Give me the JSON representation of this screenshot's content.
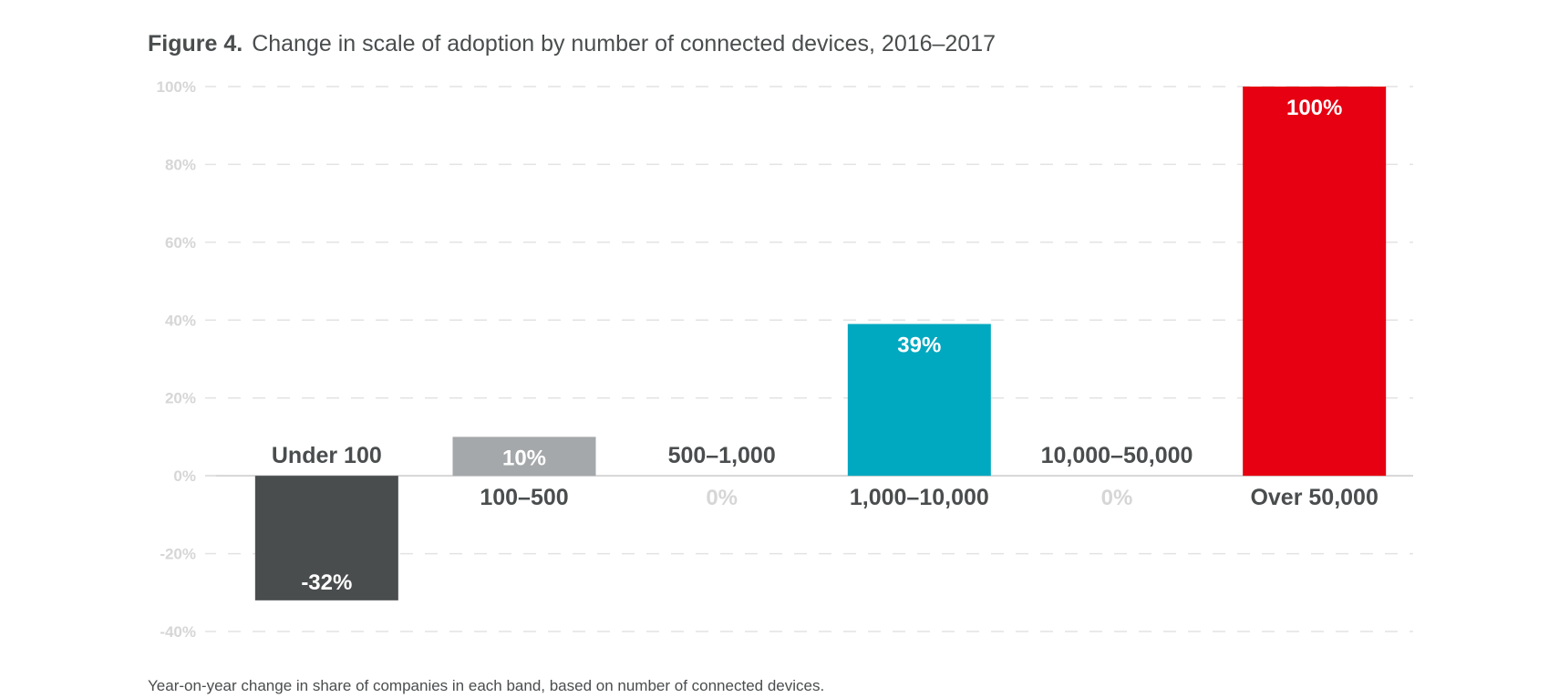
{
  "figure": {
    "number": "Figure 4.",
    "title": "Change in scale of adoption by number of connected devices, 2016–2017",
    "caption": "Year-on-year change in share of companies in each band, based on number of connected devices."
  },
  "chart_data": {
    "type": "bar",
    "title": "Change in scale of adoption by number of connected devices, 2016–2017",
    "xlabel": "",
    "ylabel": "",
    "ylim": [
      -40,
      100
    ],
    "yticks": [
      100,
      80,
      60,
      40,
      20,
      0,
      -20,
      -40
    ],
    "ytick_labels": [
      "100%",
      "80%",
      "60%",
      "40%",
      "20%",
      "0%",
      "-20%",
      "-40%"
    ],
    "grid": true,
    "categories": [
      "Under 100",
      "100–500",
      "500–1,000",
      "1,000–10,000",
      "10,000–50,000",
      "Over 50,000"
    ],
    "values": [
      -32,
      10,
      0,
      39,
      0,
      100
    ],
    "value_labels": [
      "-32%",
      "10%",
      "0%",
      "39%",
      "0%",
      "100%"
    ],
    "colors": [
      "#4a4d4e",
      "#a5a8aa",
      "#d6d6d6",
      "#00a8c0",
      "#d6d6d6",
      "#e60011"
    ]
  }
}
